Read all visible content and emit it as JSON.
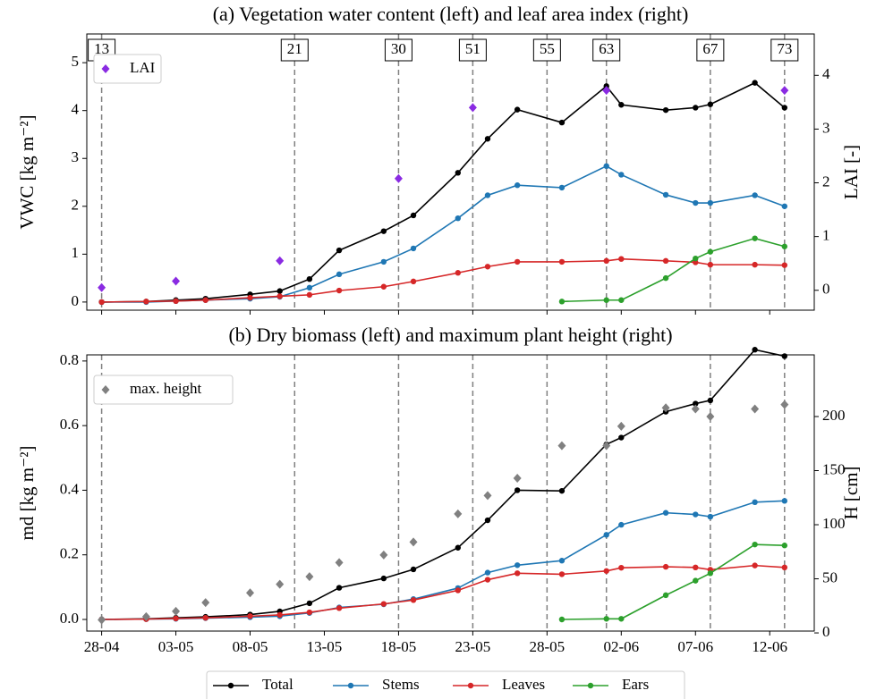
{
  "chart_data": [
    {
      "type": "line",
      "title": "(a) Vegetation water content (left) and leaf area index (right)",
      "ylabel": "VWC [kg m⁻²]",
      "y2label": "LAI [-]",
      "x": [
        "28-04",
        "01-05",
        "03-05",
        "05-05",
        "08-05",
        "10-05",
        "12-05",
        "14-05",
        "17-05",
        "19-05",
        "22-05",
        "24-05",
        "26-05",
        "29-05",
        "01-06",
        "02-06",
        "05-06",
        "07-06",
        "08-06",
        "11-06",
        "13-06"
      ],
      "series": [
        {
          "name": "Total",
          "color": "#000000",
          "values": [
            0.0,
            0.01,
            0.04,
            0.07,
            0.16,
            0.23,
            0.48,
            1.08,
            1.48,
            1.81,
            2.7,
            3.41,
            4.02,
            3.75,
            4.51,
            4.12,
            4.01,
            4.06,
            4.13,
            4.58,
            4.06
          ]
        },
        {
          "name": "Stems",
          "color": "#1f77b4",
          "values": [
            0.0,
            0.0,
            0.02,
            0.04,
            0.07,
            0.11,
            0.3,
            0.58,
            0.84,
            1.12,
            1.75,
            2.23,
            2.44,
            2.39,
            2.84,
            2.66,
            2.24,
            2.07,
            2.07,
            2.23,
            2.0
          ]
        },
        {
          "name": "Leaves",
          "color": "#d62728",
          "values": [
            0.0,
            0.01,
            0.02,
            0.04,
            0.09,
            0.12,
            0.15,
            0.24,
            0.32,
            0.43,
            0.61,
            0.74,
            0.84,
            0.84,
            0.86,
            0.9,
            0.86,
            0.83,
            0.78,
            0.78,
            0.77
          ]
        },
        {
          "name": "Ears",
          "color": "#2ca02c",
          "values": [
            null,
            null,
            null,
            null,
            null,
            null,
            null,
            null,
            null,
            null,
            null,
            null,
            null,
            0.01,
            0.04,
            0.04,
            0.5,
            0.91,
            1.05,
            1.33,
            1.16
          ]
        },
        {
          "name": "LAI",
          "color": "#8a2be2",
          "axis": "y2",
          "marker": "diamond",
          "linestyle": "none",
          "x": [
            "28-04",
            "03-05",
            "10-05",
            "18-05",
            "23-05",
            "01-06",
            "13-06"
          ],
          "values": [
            0.05,
            0.17,
            0.55,
            2.08,
            3.4,
            3.72,
            3.72
          ]
        }
      ],
      "ylim": [
        -0.17,
        5.6
      ],
      "yticks": [
        0,
        1,
        2,
        3,
        4,
        5
      ],
      "y2lim": [
        -0.37,
        4.77
      ],
      "y2ticks": [
        0,
        1,
        2,
        3,
        4
      ],
      "legend": "upper left",
      "stages": [
        {
          "x": "28-04",
          "label": "13"
        },
        {
          "x": "11-05",
          "label": "21"
        },
        {
          "x": "18-05",
          "label": "30"
        },
        {
          "x": "23-05",
          "label": "51"
        },
        {
          "x": "28-05",
          "label": "55"
        },
        {
          "x": "01-06",
          "label": "63"
        },
        {
          "x": "08-06",
          "label": "67"
        },
        {
          "x": "13-06",
          "label": "73"
        }
      ]
    },
    {
      "type": "line",
      "title": "(b) Dry biomass (left) and maximum plant height (right)",
      "ylabel": "md [kg m⁻²]",
      "y2label": "H [cm]",
      "x": [
        "28-04",
        "01-05",
        "03-05",
        "05-05",
        "08-05",
        "10-05",
        "12-05",
        "14-05",
        "17-05",
        "19-05",
        "22-05",
        "24-05",
        "26-05",
        "29-05",
        "01-06",
        "02-06",
        "05-06",
        "07-06",
        "08-06",
        "11-06",
        "13-06"
      ],
      "series": [
        {
          "color": "#000000",
          "values": [
            0.0,
            0.002,
            0.005,
            0.008,
            0.015,
            0.025,
            0.05,
            0.098,
            0.127,
            0.155,
            0.222,
            0.307,
            0.4,
            0.398,
            0.542,
            0.563,
            0.643,
            0.668,
            0.678,
            0.835,
            0.815
          ]
        },
        {
          "color": "#1f77b4",
          "values": [
            0.0,
            0.001,
            0.002,
            0.004,
            0.007,
            0.01,
            0.02,
            0.037,
            0.047,
            0.063,
            0.097,
            0.145,
            0.168,
            0.182,
            0.262,
            0.293,
            0.33,
            0.325,
            0.318,
            0.363,
            0.367
          ]
        },
        {
          "color": "#d62728",
          "values": [
            0.0,
            0.001,
            0.003,
            0.005,
            0.01,
            0.014,
            0.022,
            0.035,
            0.048,
            0.06,
            0.09,
            0.123,
            0.143,
            0.14,
            0.15,
            0.16,
            0.163,
            0.161,
            0.154,
            0.167,
            0.161
          ]
        },
        {
          "color": "#2ca02c",
          "values": [
            null,
            null,
            null,
            null,
            null,
            null,
            null,
            null,
            null,
            null,
            null,
            null,
            null,
            0.0,
            0.002,
            0.002,
            0.075,
            0.12,
            0.143,
            0.232,
            0.229
          ]
        },
        {
          "name": "max. height",
          "color": "#808080",
          "axis": "y2",
          "marker": "diamond",
          "linestyle": "none",
          "values": [
            12,
            15,
            20,
            28,
            37,
            45,
            52,
            65,
            72,
            84,
            110,
            127,
            143,
            173,
            173,
            191,
            208,
            207,
            200,
            207,
            211
          ]
        }
      ],
      "ylim": [
        -0.036,
        0.819
      ],
      "yticks": [
        {
          "value": 0,
          "label": "0.0"
        },
        0.2,
        0.4,
        0.6,
        0.8
      ],
      "y2lim": [
        1.7,
        257
      ],
      "y2ticks": [
        0,
        50,
        100,
        150,
        200
      ],
      "legend": "upper left",
      "xlim": [
        "27-04",
        "15-06"
      ],
      "xticks": [
        "28-04",
        "03-05",
        "08-05",
        "13-05",
        "18-05",
        "23-05",
        "28-05",
        "02-06",
        "07-06",
        "12-06"
      ]
    }
  ]
}
